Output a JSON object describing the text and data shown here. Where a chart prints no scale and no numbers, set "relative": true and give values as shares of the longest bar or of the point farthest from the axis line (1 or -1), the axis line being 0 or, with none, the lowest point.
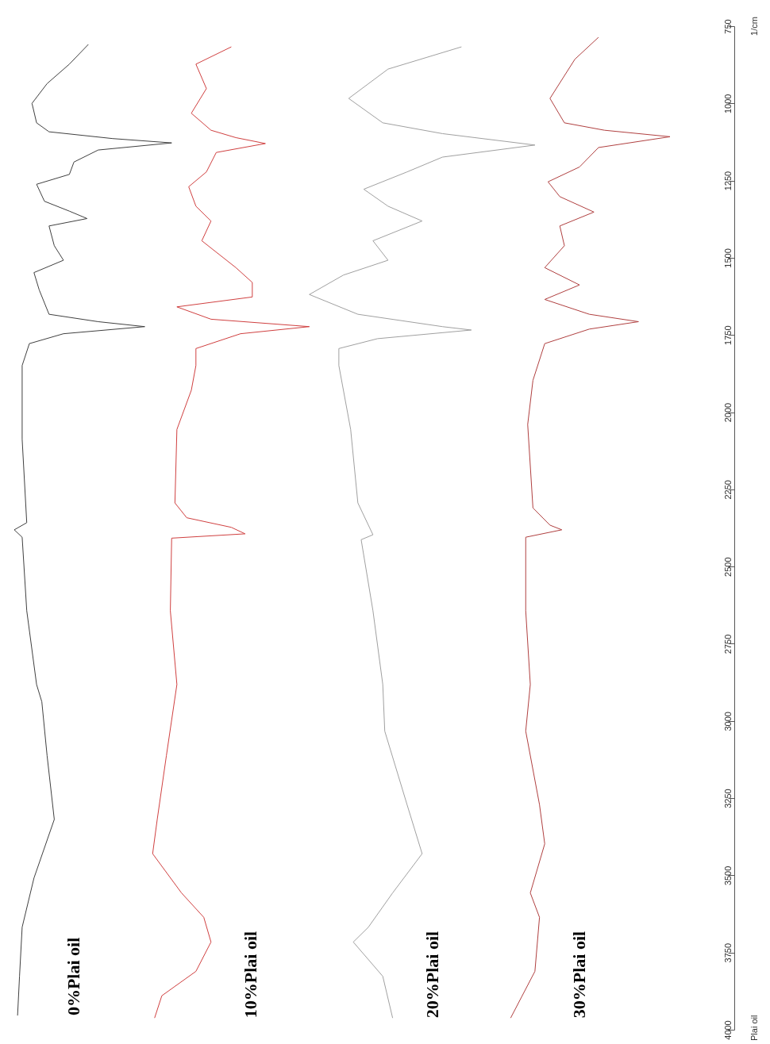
{
  "chart_data": {
    "type": "line",
    "relative": true,
    "orientation": "horizontal",
    "ylabel": "1/cm",
    "annotations": [
      "Plai oil"
    ],
    "ylim": [
      4000,
      750
    ],
    "yticks": [
      750,
      1000,
      1250,
      1500,
      1750,
      2000,
      2250,
      2500,
      2750,
      3000,
      3250,
      3500,
      3750,
      4000
    ],
    "tick_labels": "y",
    "legend": false,
    "grid": false,
    "series": [
      {
        "name": "0%Plai oil",
        "color": "#404040",
        "x": [
          809,
          873,
          936,
          1000,
          1063,
          1092,
          1114,
          1128,
          1151,
          1190,
          1230,
          1262,
          1317,
          1349,
          1373,
          1397,
          1461,
          1508,
          1548,
          1604,
          1683,
          1707,
          1723,
          1746,
          1778,
          1849,
          2088,
          2358,
          2381,
          2405,
          2643,
          2882,
          2938,
          3112,
          3319,
          3509,
          3668,
          3827,
          3954
        ],
        "values": [
          0.113,
          0.084,
          0.05,
          0.027,
          0.034,
          0.053,
          0.15,
          0.24,
          0.128,
          0.091,
          0.084,
          0.034,
          0.046,
          0.084,
          0.111,
          0.053,
          0.061,
          0.075,
          0.03,
          0.038,
          0.053,
          0.128,
          0.199,
          0.075,
          0.023,
          0.012,
          0.012,
          0.019,
          0,
          0.012,
          0.019,
          0.034,
          0.042,
          0.05,
          0.061,
          0.03,
          0.012,
          0.008,
          0.005
        ]
      },
      {
        "name": "10%Plai oil",
        "color": "#d04040",
        "x": [
          817,
          873,
          952,
          1032,
          1087,
          1111,
          1130,
          1159,
          1222,
          1270,
          1333,
          1381,
          1445,
          1532,
          1580,
          1627,
          1659,
          1699,
          1723,
          1746,
          1794,
          1849,
          1929,
          2056,
          2294,
          2342,
          2373,
          2394,
          2408,
          2643,
          2882,
          3112,
          3319,
          3430,
          3557,
          3636,
          3716,
          3811,
          3890,
          3962
        ],
        "values": [
          0.331,
          0.277,
          0.293,
          0.27,
          0.3,
          0.338,
          0.383,
          0.308,
          0.293,
          0.266,
          0.277,
          0.3,
          0.286,
          0.338,
          0.363,
          0.363,
          0.248,
          0.3,
          0.45,
          0.345,
          0.277,
          0.277,
          0.27,
          0.248,
          0.245,
          0.263,
          0.331,
          0.352,
          0.24,
          0.238,
          0.248,
          0.232,
          0.218,
          0.211,
          0.255,
          0.289,
          0.3,
          0.277,
          0.225,
          0.214
        ]
      },
      {
        "name": "20%Plai oil",
        "color": "#a0a0a0",
        "x": [
          817,
          889,
          984,
          1063,
          1098,
          1135,
          1174,
          1222,
          1278,
          1333,
          1381,
          1445,
          1508,
          1556,
          1619,
          1683,
          1723,
          1734,
          1762,
          1794,
          1849,
          2056,
          2294,
          2397,
          2413,
          2643,
          2882,
          3033,
          3271,
          3430,
          3557,
          3668,
          3716,
          3827,
          3962
        ],
        "values": [
          0.682,
          0.57,
          0.51,
          0.562,
          0.653,
          0.794,
          0.653,
          0.599,
          0.533,
          0.57,
          0.622,
          0.547,
          0.57,
          0.502,
          0.45,
          0.524,
          0.653,
          0.697,
          0.554,
          0.495,
          0.495,
          0.513,
          0.524,
          0.547,
          0.529,
          0.547,
          0.562,
          0.565,
          0.599,
          0.622,
          0.577,
          0.54,
          0.517,
          0.562,
          0.577
        ]
      },
      {
        "name": "30%Plai oil",
        "color": "#b04040",
        "x": [
          786,
          857,
          984,
          1063,
          1087,
          1108,
          1143,
          1206,
          1254,
          1302,
          1352,
          1397,
          1461,
          1532,
          1588,
          1635,
          1683,
          1707,
          1731,
          1778,
          1897,
          2040,
          2310,
          2366,
          2381,
          2405,
          2643,
          2882,
          3033,
          3271,
          3398,
          3557,
          3636,
          3811,
          3962
        ],
        "values": [
          0.891,
          0.855,
          0.817,
          0.839,
          0.9,
          1,
          0.891,
          0.862,
          0.814,
          0.832,
          0.884,
          0.832,
          0.839,
          0.809,
          0.862,
          0.809,
          0.877,
          0.952,
          0.877,
          0.809,
          0.791,
          0.783,
          0.791,
          0.817,
          0.835,
          0.78,
          0.78,
          0.787,
          0.78,
          0.801,
          0.809,
          0.787,
          0.801,
          0.794,
          0.757
        ]
      }
    ]
  }
}
